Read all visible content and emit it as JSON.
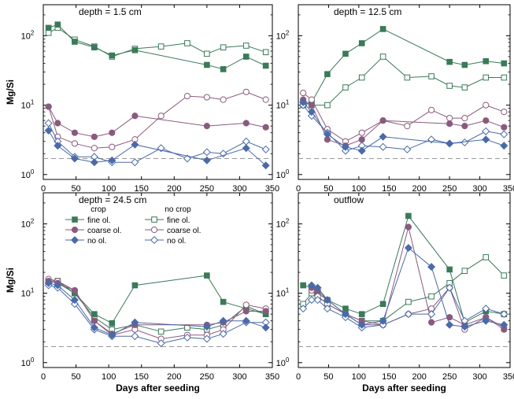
{
  "chart_data": {
    "type": "line",
    "x_label": "Days after seeding",
    "y_label": "Mg/Si",
    "y_scale": "log",
    "xlim": [
      0,
      350
    ],
    "ylim": [
      0.85,
      280
    ],
    "xticks": [
      "0",
      "50",
      "100",
      "150",
      "200",
      "250",
      "300",
      "350"
    ],
    "yticks": [
      {
        "value": 1,
        "base": "10",
        "exp": "0"
      },
      {
        "value": 10,
        "base": "10",
        "exp": "1"
      },
      {
        "value": 100,
        "base": "10",
        "exp": "2"
      }
    ],
    "reference_line": 1.7,
    "legend": {
      "placement": "top-left of panel 3",
      "col_headers": [
        "crop",
        "no crop"
      ],
      "entries": [
        {
          "crop": "fine ol.",
          "nocrop": "fine ol.",
          "color": "#3a7a58"
        },
        {
          "crop": "coarse ol.",
          "nocrop": "coarse ol.",
          "color": "#8a5a7e"
        },
        {
          "crop": "no ol.",
          "nocrop": "no ol.",
          "color": "#4a6aa8"
        }
      ]
    },
    "series_styles": [
      {
        "key": "fine_crop",
        "color": "#3a7a58",
        "marker": "square",
        "filled": true
      },
      {
        "key": "fine_nocrop",
        "color": "#3a7a58",
        "marker": "square",
        "filled": false
      },
      {
        "key": "coarse_crop",
        "color": "#8a5a7e",
        "marker": "circle",
        "filled": true
      },
      {
        "key": "coarse_nocrop",
        "color": "#8a5a7e",
        "marker": "circle",
        "filled": false
      },
      {
        "key": "no_crop",
        "color": "#4a6aa8",
        "marker": "diamond",
        "filled": true
      },
      {
        "key": "no_nocrop",
        "color": "#4a6aa8",
        "marker": "diamond",
        "filled": false
      }
    ],
    "panels": [
      {
        "title": "depth = 1.5 cm",
        "series": {
          "fine_crop": {
            "x": [
              8,
              22,
              48,
              78,
              105,
              140,
              250,
              275,
              310,
              340
            ],
            "y": [
              130,
              145,
              82,
              68,
              52,
              62,
              38,
              33,
              50,
              37
            ]
          },
          "fine_nocrop": {
            "x": [
              8,
              22,
              48,
              78,
              105,
              140,
              180,
              220,
              250,
              275,
              310,
              340
            ],
            "y": [
              110,
              130,
              88,
              70,
              50,
              65,
              70,
              78,
              55,
              68,
              72,
              58
            ]
          },
          "coarse_crop": {
            "x": [
              8,
              22,
              48,
              78,
              105,
              140,
              250,
              310,
              340
            ],
            "y": [
              9.5,
              5.5,
              4.0,
              3.5,
              4.0,
              7.0,
              5.0,
              5.5,
              4.8
            ]
          },
          "coarse_nocrop": {
            "x": [
              8,
              22,
              48,
              78,
              105,
              140,
              180,
              220,
              250,
              275,
              310,
              340
            ],
            "y": [
              9.5,
              3.5,
              2.8,
              2.4,
              2.5,
              3.2,
              7.0,
              13.5,
              13.0,
              12.0,
              15.5,
              12.0
            ]
          },
          "no_crop": {
            "x": [
              8,
              22,
              48,
              78,
              105,
              140,
              250,
              310,
              340
            ],
            "y": [
              4.3,
              2.6,
              1.7,
              1.5,
              1.6,
              2.7,
              1.6,
              2.4,
              1.35
            ]
          },
          "no_nocrop": {
            "x": [
              8,
              22,
              48,
              78,
              105,
              140,
              180,
              220,
              250,
              275,
              310,
              340
            ],
            "y": [
              5.5,
              3.0,
              1.8,
              1.8,
              1.5,
              1.5,
              2.4,
              1.7,
              2.1,
              2.0,
              3.0,
              2.3
            ]
          }
        }
      },
      {
        "title": "depth = 12.5 cm",
        "series": {
          "fine_crop": {
            "x": [
              8,
              22,
              48,
              78,
              105,
              140,
              250,
              275,
              310,
              340
            ],
            "y": [
              10,
              11,
              28,
              55,
              78,
              125,
              42,
              38,
              43,
              40
            ]
          },
          "fine_nocrop": {
            "x": [
              8,
              22,
              48,
              78,
              105,
              140,
              180,
              220,
              250,
              275,
              310,
              340
            ],
            "y": [
              11,
              10,
              10,
              18,
              25,
              50,
              25,
              26,
              19,
              18,
              25,
              25
            ]
          },
          "coarse_crop": {
            "x": [
              8,
              22,
              48,
              78,
              105,
              140,
              250,
              275,
              310,
              340
            ],
            "y": [
              12,
              10,
              3.2,
              2.6,
              3.2,
              6.0,
              5.4,
              5.0,
              6.0,
              4.8
            ]
          },
          "coarse_nocrop": {
            "x": [
              8,
              22,
              48,
              78,
              105,
              140,
              180,
              220,
              250,
              275,
              310,
              340
            ],
            "y": [
              15,
              12,
              4.5,
              3.0,
              4.0,
              6.0,
              5.0,
              8.5,
              6.5,
              6.5,
              10.0,
              8.0
            ]
          },
          "no_crop": {
            "x": [
              8,
              22,
              48,
              78,
              105,
              140,
              250,
              310,
              340
            ],
            "y": [
              11,
              8,
              3.8,
              2.5,
              2.2,
              3.5,
              2.8,
              3.2,
              2.6
            ]
          },
          "no_nocrop": {
            "x": [
              8,
              22,
              48,
              78,
              105,
              140,
              180,
              220,
              250,
              275,
              310,
              340
            ],
            "y": [
              10,
              7,
              4.0,
              2.2,
              2.6,
              2.5,
              2.3,
              3.2,
              2.8,
              2.9,
              4.2,
              3.8
            ]
          }
        }
      },
      {
        "title": "depth = 24.5 cm",
        "series": {
          "fine_crop": {
            "x": [
              8,
              22,
              48,
              78,
              105,
              140,
              250,
              275,
              310,
              340
            ],
            "y": [
              15,
              15,
              10,
              5.0,
              3.7,
              13,
              18,
              7.5,
              6.0,
              5.0
            ]
          },
          "fine_nocrop": {
            "x": [
              8,
              22,
              48,
              78,
              105,
              140,
              180,
              220,
              250,
              275,
              310,
              340
            ],
            "y": [
              15,
              14,
              10,
              4.5,
              3.0,
              3.5,
              2.8,
              3.2,
              3.0,
              3.5,
              6.5,
              5.0
            ]
          },
          "coarse_crop": {
            "x": [
              8,
              22,
              48,
              78,
              105,
              140,
              250,
              275,
              310,
              340
            ],
            "y": [
              15,
              14,
              11,
              4.0,
              2.6,
              3.5,
              3.5,
              3.8,
              5.5,
              5.5
            ]
          },
          "coarse_nocrop": {
            "x": [
              8,
              22,
              48,
              78,
              105,
              140,
              180,
              220,
              250,
              275,
              310,
              340
            ],
            "y": [
              16,
              15,
              11,
              4.0,
              2.5,
              3.0,
              2.2,
              2.5,
              2.5,
              3.0,
              6.8,
              6.0
            ]
          },
          "no_crop": {
            "x": [
              8,
              22,
              48,
              78,
              105,
              140,
              250,
              275,
              310,
              340
            ],
            "y": [
              14,
              13,
              8.0,
              3.2,
              2.5,
              3.8,
              3.3,
              4.0,
              4.0,
              3.2
            ]
          },
          "no_nocrop": {
            "x": [
              8,
              22,
              48,
              78,
              105,
              140,
              180,
              220,
              250,
              275,
              310,
              340
            ],
            "y": [
              13,
              12,
              7.0,
              3.0,
              2.4,
              2.4,
              1.9,
              2.3,
              2.2,
              2.6,
              3.8,
              3.8
            ]
          }
        }
      },
      {
        "title": "outflow",
        "series": {
          "fine_crop": {
            "x": [
              8,
              22,
              32,
              48,
              78,
              105,
              140,
              182,
              250,
              275,
              310,
              340
            ],
            "y": [
              13,
              12,
              10,
              8,
              6,
              5,
              7,
              130,
              22,
              3.8,
              5.5,
              5.0
            ]
          },
          "fine_nocrop": {
            "x": [
              8,
              22,
              32,
              48,
              78,
              105,
              140,
              182,
              220,
              250,
              275,
              310,
              340
            ],
            "y": [
              7,
              10,
              9,
              7,
              5,
              4,
              4,
              7.5,
              9,
              14,
              21,
              33,
              18
            ]
          },
          "coarse_crop": {
            "x": [
              22,
              32,
              48,
              78,
              105,
              140,
              182,
              220,
              250,
              275,
              310,
              340
            ],
            "y": [
              12,
              11,
              8,
              5,
              4,
              3.5,
              90,
              3.8,
              4.5,
              3.5,
              4.5,
              3.0
            ]
          },
          "coarse_nocrop": {
            "x": [
              22,
              32,
              48,
              78,
              105,
              140,
              182,
              220,
              250,
              275,
              310,
              340
            ],
            "y": [
              11,
              9,
              7,
              5,
              3.5,
              3.5,
              5,
              6,
              12,
              3.0,
              4.5,
              3.2
            ]
          },
          "no_crop": {
            "x": [
              22,
              32,
              48,
              78,
              105,
              140,
              182,
              220,
              250,
              275,
              310,
              340
            ],
            "y": [
              13,
              12,
              8,
              5,
              3.5,
              4,
              45,
              24,
              3.5,
              3.3,
              4.0,
              3.5
            ]
          },
          "no_nocrop": {
            "x": [
              8,
              22,
              32,
              48,
              78,
              105,
              140,
              182,
              220,
              250,
              275,
              310,
              340
            ],
            "y": [
              6,
              8,
              8,
              6,
              4.5,
              3.2,
              3.5,
              5,
              5,
              12,
              4,
              6,
              5
            ]
          }
        }
      }
    ]
  }
}
